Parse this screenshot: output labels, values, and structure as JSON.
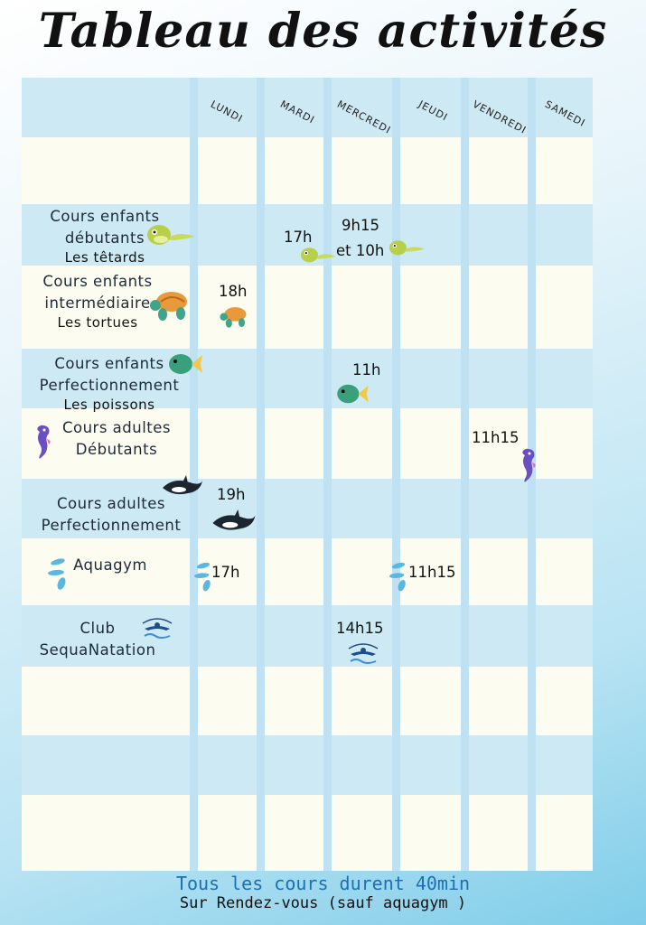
{
  "title": "Tableau des activités",
  "days": [
    "LUNDI",
    "MARDI",
    "MERCREDI",
    "JEUDI",
    "VENDREDI",
    "SAMEDI"
  ],
  "activities": [
    {
      "name": "Cours enfants débutants",
      "sub": "Les têtards",
      "icon": "tadpole-icon"
    },
    {
      "name": "Cours enfants intermédiaire",
      "sub": "Les tortues",
      "icon": "turtle-icon"
    },
    {
      "name": "Cours enfants Perfectionnement",
      "sub": "Les poissons",
      "icon": "fish-icon"
    },
    {
      "name": "Cours adultes Débutants",
      "sub": "",
      "icon": "seahorse-icon"
    },
    {
      "name": "Cours adultes Perfectionnement",
      "sub": "",
      "icon": "orca-icon"
    },
    {
      "name": "Aquagym",
      "sub": "",
      "icon": "water-splash-icon"
    },
    {
      "name": "Club SequaNatation",
      "sub": "",
      "icon": "swimmer-logo-icon"
    }
  ],
  "schedule": {
    "tetards": {
      "mardi": "17h",
      "mercredi_line1": "9h15",
      "mercredi_line2": "et 10h"
    },
    "tortues": {
      "lundi": "18h"
    },
    "poissons": {
      "mercredi": "11h"
    },
    "adultes_debutants": {
      "vendredi": "11h15"
    },
    "adultes_perf": {
      "lundi": "19h"
    },
    "aquagym": {
      "lundi": "17h",
      "jeudi": "11h15"
    },
    "club": {
      "mercredi": "14h15"
    }
  },
  "footer": {
    "line1": "Tous les cours durent 40min",
    "line2": "Sur Rendez-vous (sauf aquagym )"
  },
  "colors": {
    "cream": "#fdfcf1",
    "row_blue": "#cdeaf4",
    "separator": "#bfe1f1",
    "footer_blue": "#1c6fb3"
  }
}
